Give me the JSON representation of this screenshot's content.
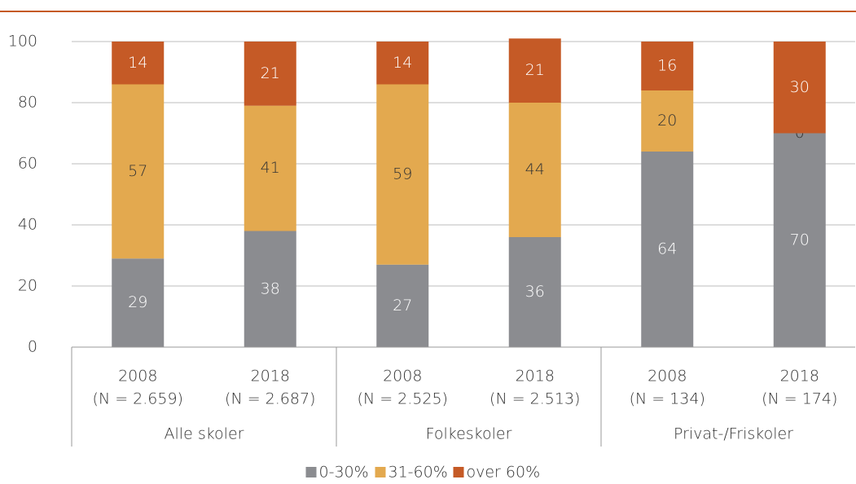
{
  "chart_data": {
    "type": "stacked_bar",
    "categories": [
      [
        "2008",
        "(N = 2.659)"
      ],
      [
        "2018",
        "(N = 2.687)"
      ],
      [
        "2008",
        "(N = 2.525)"
      ],
      [
        "2018",
        "(N = 2.513)"
      ],
      [
        "2008",
        "(N = 134)"
      ],
      [
        "2018",
        "(N = 174)"
      ]
    ],
    "groups": [
      "Alle skoler",
      "Folkeskoler",
      "Privat-/Friskoler"
    ],
    "series": [
      {
        "name": "0-30%",
        "color": "#8b8c90",
        "values": [
          29,
          38,
          27,
          36,
          64,
          70
        ]
      },
      {
        "name": "31-60%",
        "color": "#e3a94f",
        "values": [
          57,
          41,
          59,
          44,
          20,
          0
        ]
      },
      {
        "name": "over 60%",
        "color": "#c55a26",
        "values": [
          14,
          21,
          14,
          21,
          16,
          30
        ]
      }
    ],
    "ylim": [
      0,
      100
    ],
    "yticks": [
      0,
      20,
      40,
      60,
      80,
      100
    ],
    "grid": true,
    "legend": "bottom"
  }
}
